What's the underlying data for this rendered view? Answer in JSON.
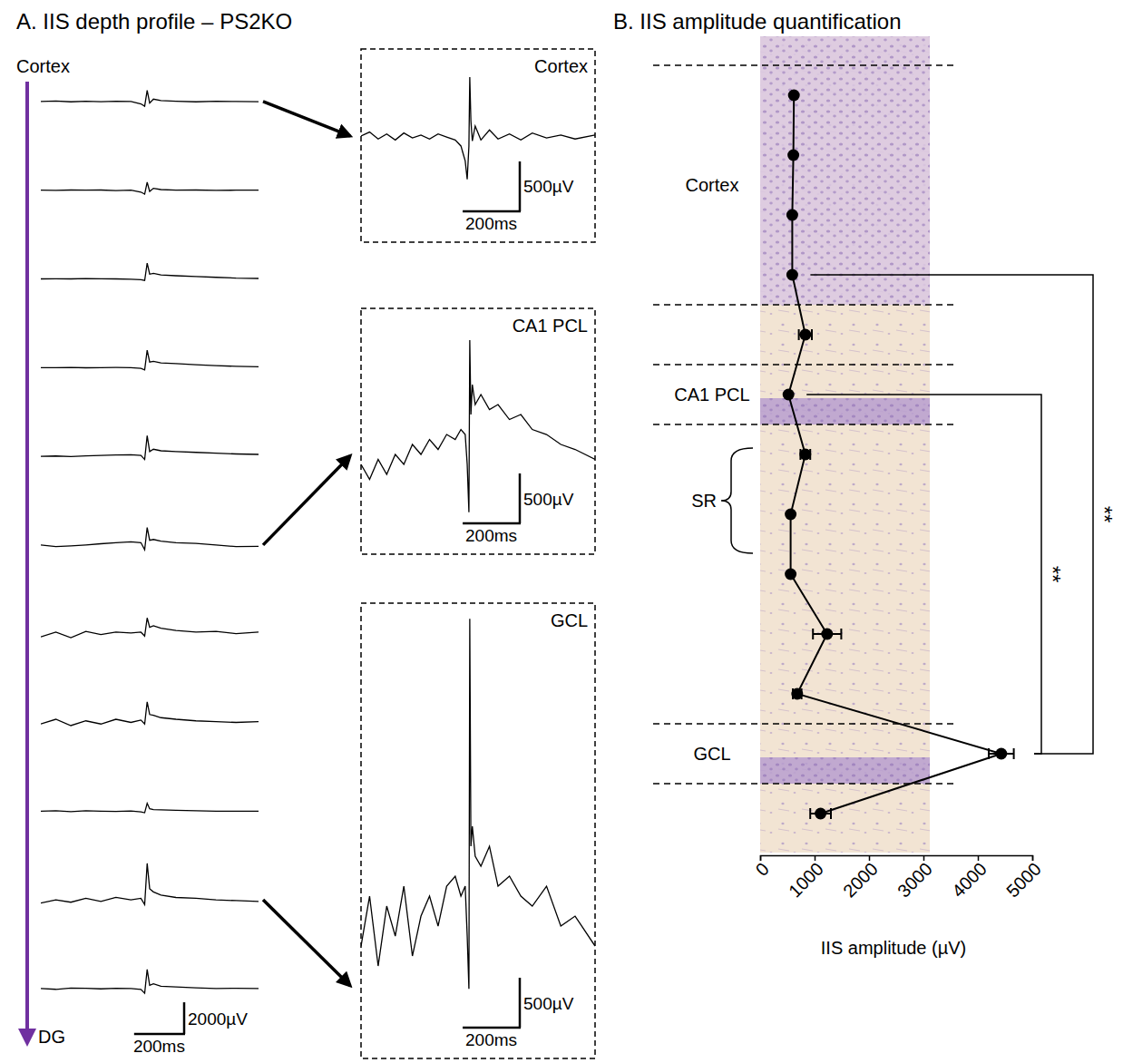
{
  "chart_data": [
    {
      "type": "line",
      "title": "A. IIS depth profile – PS2KO",
      "depth_top_label": "Cortex",
      "depth_bottom_label": "DG",
      "x": [
        0,
        60,
        120,
        180,
        240,
        300,
        360,
        400,
        415,
        425,
        435,
        450,
        480,
        540,
        620,
        700,
        780,
        870
      ],
      "xlim": [
        0,
        870
      ],
      "ylim": [
        -2800,
        2800
      ],
      "tick_labels": false,
      "color": "#000000",
      "series": [
        {
          "values": [
            0,
            30,
            -20,
            10,
            -10,
            20,
            0,
            -150,
            -300,
            700,
            -100,
            150,
            60,
            20,
            -20,
            10,
            0,
            -10
          ]
        },
        {
          "values": [
            0,
            -10,
            10,
            0,
            10,
            -20,
            0,
            -120,
            -250,
            500,
            -80,
            120,
            40,
            0,
            10,
            -10,
            0,
            0
          ]
        },
        {
          "values": [
            0,
            10,
            0,
            20,
            10,
            0,
            -20,
            -50,
            -100,
            1000,
            300,
            350,
            250,
            200,
            150,
            100,
            50,
            30
          ]
        },
        {
          "values": [
            0,
            0,
            10,
            -10,
            0,
            10,
            0,
            -50,
            -150,
            1100,
            350,
            400,
            300,
            250,
            180,
            120,
            80,
            50
          ]
        },
        {
          "values": [
            0,
            20,
            -20,
            30,
            60,
            80,
            100,
            60,
            -200,
            1300,
            300,
            450,
            350,
            300,
            250,
            200,
            150,
            120
          ]
        },
        {
          "values": [
            0,
            -100,
            -60,
            0,
            80,
            150,
            200,
            150,
            -300,
            1100,
            300,
            350,
            250,
            150,
            100,
            0,
            -100,
            -80
          ]
        },
        {
          "values": [
            -200,
            100,
            -250,
            150,
            -50,
            100,
            50,
            100,
            -150,
            1000,
            400,
            500,
            350,
            200,
            100,
            150,
            0,
            100
          ]
        },
        {
          "values": [
            -100,
            200,
            -200,
            100,
            -100,
            200,
            0,
            150,
            -100,
            1300,
            500,
            450,
            300,
            200,
            100,
            50,
            0,
            50
          ]
        },
        {
          "values": [
            0,
            30,
            -30,
            20,
            0,
            -20,
            10,
            -50,
            -100,
            500,
            150,
            100,
            80,
            50,
            20,
            0,
            0,
            -10
          ]
        },
        {
          "values": [
            -200,
            0,
            -150,
            100,
            -100,
            150,
            0,
            100,
            -300,
            2300,
            700,
            500,
            300,
            150,
            100,
            0,
            -50,
            -100
          ]
        },
        {
          "values": [
            0,
            -50,
            30,
            20,
            -20,
            10,
            0,
            -50,
            -300,
            1200,
            200,
            300,
            150,
            100,
            50,
            0,
            20,
            0
          ]
        }
      ],
      "scale_bars": {
        "x": {
          "value": 200,
          "label": "200ms"
        },
        "y": {
          "value": 2000,
          "label": "2000µV"
        }
      }
    },
    {
      "type": "line",
      "title": "Cortex",
      "trace": 0,
      "x": [
        0,
        30,
        60,
        90,
        120,
        150,
        180,
        210,
        240,
        270,
        300,
        330,
        350,
        365,
        372,
        378,
        381,
        385,
        390,
        400,
        420,
        450,
        480,
        520,
        560,
        600,
        650,
        700,
        750,
        820
      ],
      "xlim": [
        0,
        820
      ],
      "ylim": [
        -1064,
        872
      ],
      "tick_labels": false,
      "color": "#000000",
      "values": [
        0,
        40,
        -30,
        20,
        -40,
        30,
        -20,
        10,
        -30,
        20,
        -10,
        -40,
        -100,
        -250,
        -435,
        -100,
        590,
        150,
        -50,
        100,
        -40,
        60,
        -30,
        20,
        -40,
        30,
        -20,
        10,
        -30,
        10
      ],
      "scale_bars": {
        "x": {
          "value": 200,
          "label": "200ms"
        },
        "y": {
          "value": 500,
          "label": "500µV"
        }
      }
    },
    {
      "type": "line",
      "title": "CA1 PCL",
      "trace": 5,
      "x": [
        0,
        30,
        60,
        90,
        120,
        150,
        180,
        210,
        240,
        270,
        300,
        330,
        350,
        365,
        372,
        378,
        381,
        385,
        390,
        400,
        420,
        450,
        480,
        520,
        560,
        600,
        650,
        700,
        750,
        820
      ],
      "xlim": [
        0,
        820
      ],
      "ylim": [
        -1100,
        1364
      ],
      "tick_labels": false,
      "color": "#000000",
      "values": [
        -200,
        -350,
        -150,
        -300,
        -100,
        -200,
        0,
        -100,
        50,
        -50,
        100,
        50,
        150,
        100,
        -200,
        -680,
        1045,
        300,
        600,
        400,
        500,
        350,
        400,
        250,
        300,
        150,
        100,
        0,
        -50,
        -150
      ],
      "scale_bars": {
        "x": {
          "value": 200,
          "label": "200ms"
        },
        "y": {
          "value": 500,
          "label": "500µV"
        }
      }
    },
    {
      "type": "line",
      "title": "GCL",
      "trace": 9,
      "x": [
        0,
        30,
        60,
        90,
        120,
        150,
        180,
        210,
        240,
        270,
        300,
        330,
        350,
        365,
        372,
        378,
        381,
        385,
        390,
        400,
        420,
        450,
        480,
        520,
        560,
        600,
        650,
        700,
        750,
        820
      ],
      "xlim": [
        0,
        820
      ],
      "ylim": [
        -1427,
        3137
      ],
      "tick_labels": false,
      "color": "#000000",
      "values": [
        -300,
        200,
        -500,
        100,
        -200,
        300,
        -400,
        0,
        200,
        -100,
        300,
        400,
        200,
        300,
        -200,
        -730,
        2980,
        700,
        900,
        600,
        500,
        700,
        300,
        400,
        200,
        100,
        300,
        -100,
        0,
        -300
      ],
      "scale_bars": {
        "x": {
          "value": 200,
          "label": "200ms"
        },
        "y": {
          "value": 500,
          "label": "500µV"
        }
      }
    },
    {
      "type": "line",
      "title": "B. IIS amplitude quantification",
      "x_label": "IIS amplitude (µV)",
      "orientation": "horizontal",
      "marker": "circle",
      "color": "#000000",
      "categories": [
        null,
        null,
        null,
        null,
        null,
        null,
        null,
        null,
        null,
        null,
        null,
        null,
        null
      ],
      "values": [
        620,
        610,
        590,
        590,
        830,
        520,
        830,
        560,
        560,
        1230,
        680,
        4430,
        1110
      ],
      "errors": [
        null,
        null,
        null,
        null,
        120,
        null,
        90,
        null,
        null,
        260,
        80,
        230,
        190
      ],
      "xlim": [
        0,
        5000
      ],
      "xticks": [
        0,
        1000,
        2000,
        3000,
        4000,
        5000
      ],
      "regions": [
        {
          "label": "Cortex",
          "first": 0,
          "last": 3,
          "line_style": "dashed"
        },
        {
          "label": "CA1 PCL",
          "first": 5,
          "last": 5,
          "line_style": "dashed"
        },
        {
          "label": "SR",
          "first": 6,
          "last": 7,
          "marker": "bracket"
        },
        {
          "label": "GCL",
          "first": 11,
          "last": 11,
          "line_style": "dashed"
        }
      ],
      "annotations": [
        {
          "from": 3,
          "to": 11,
          "text": "**"
        },
        {
          "from": 5,
          "to": 11,
          "text": "**"
        }
      ]
    }
  ]
}
